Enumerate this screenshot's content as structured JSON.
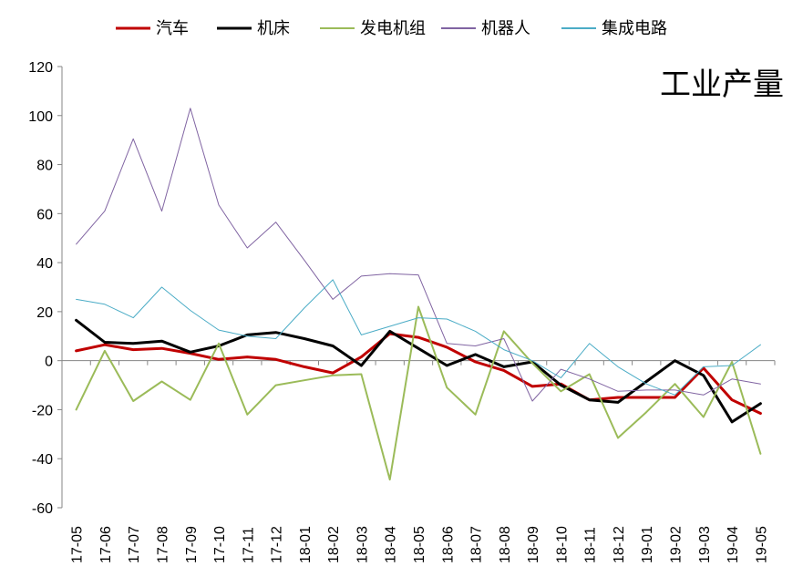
{
  "chart_data": {
    "type": "line",
    "title": "工业产量",
    "xlabel": "",
    "ylabel": "",
    "ylim": [
      -60,
      120
    ],
    "yticks": [
      -60,
      -40,
      -20,
      0,
      20,
      40,
      60,
      80,
      100,
      120
    ],
    "grid": false,
    "legend_position": "top",
    "x": [
      "17-05",
      "17-06",
      "17-07",
      "17-08",
      "17-09",
      "17-10",
      "17-11",
      "17-12",
      "18-01",
      "18-02",
      "18-03",
      "18-04",
      "18-05",
      "18-06",
      "18-07",
      "18-08",
      "18-09",
      "18-10",
      "18-11",
      "18-12",
      "19-01",
      "19-02",
      "19-03",
      "19-04",
      "19-05"
    ],
    "series": [
      {
        "name": "汽车",
        "color": "#c00000",
        "width": 3,
        "values": [
          4,
          6.5,
          4.5,
          5,
          3,
          0.5,
          1.5,
          0.5,
          -2.5,
          -5,
          1.5,
          11,
          9.5,
          5.5,
          -0.5,
          -4,
          -10.5,
          -9.5,
          -16,
          -15,
          -15,
          -15,
          -3,
          -16,
          -21.5
        ]
      },
      {
        "name": "机床",
        "color": "#000000",
        "width": 3,
        "values": [
          16.5,
          7.5,
          7,
          8,
          3.5,
          6,
          10.5,
          11.5,
          9,
          6,
          -2,
          12,
          5,
          -2,
          2.5,
          -2.5,
          -0.5,
          -10,
          -16,
          -17,
          -8.5,
          0,
          -6,
          -25,
          -17.5
        ]
      },
      {
        "name": "发电机组",
        "color": "#9bbb59",
        "width": 2,
        "values": [
          -20,
          4,
          -16.5,
          -8.5,
          -16,
          7,
          -22,
          -10,
          -8,
          -6,
          -5.5,
          -48.5,
          22,
          -11,
          -22,
          12,
          -1,
          -12.5,
          -5.5,
          -31.5,
          -21,
          -9.5,
          -23,
          -0.5,
          -38
        ]
      },
      {
        "name": "机器人",
        "color": "#8064a2",
        "width": 1,
        "values": [
          47.5,
          61,
          90.5,
          61,
          103,
          63.5,
          46,
          56.5,
          41,
          25,
          34.5,
          35.5,
          35,
          7,
          6,
          9,
          -16.5,
          -3.5,
          -7.5,
          -12.5,
          -12,
          -12,
          -14,
          -7.5,
          -9.5
        ]
      },
      {
        "name": "集成电路",
        "color": "#4bacc6",
        "width": 1,
        "values": [
          25,
          23,
          17.5,
          30,
          20.5,
          12.5,
          10,
          9,
          21.5,
          33,
          10.5,
          14,
          17.5,
          17,
          12,
          4.5,
          0,
          -7,
          7,
          -2.5,
          -9.5,
          -14,
          -2.5,
          -2,
          6.5
        ]
      }
    ]
  }
}
